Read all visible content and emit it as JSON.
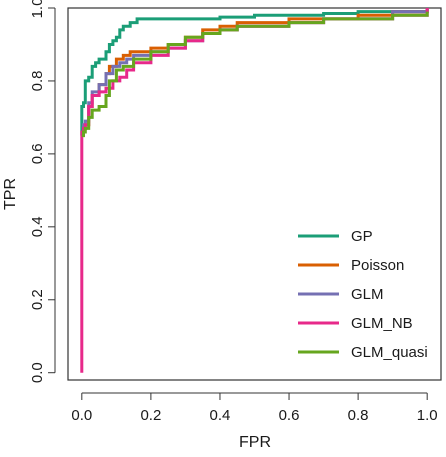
{
  "chart_data": {
    "type": "line",
    "title": "",
    "xlabel": "FPR",
    "ylabel": "TPR",
    "xlim": [
      -0.04,
      1.04
    ],
    "ylim": [
      -0.02,
      1.0
    ],
    "xticks": [
      0.0,
      0.2,
      0.4,
      0.6,
      0.8,
      1.0
    ],
    "xtick_labels": [
      "0.0",
      "0.2",
      "0.4",
      "0.6",
      "0.8",
      "1.0"
    ],
    "yticks": [
      0.0,
      0.2,
      0.4,
      0.6,
      0.8,
      1.0
    ],
    "ytick_labels": [
      "0.0",
      "0.2",
      "0.4",
      "0.6",
      "0.8",
      "1.0"
    ],
    "grid": false,
    "legend_position": "bottom-right",
    "series": [
      {
        "name": "GP",
        "color": "#1b9e77",
        "x": [
          0.0,
          0.0,
          0.005,
          0.01,
          0.02,
          0.03,
          0.04,
          0.05,
          0.07,
          0.08,
          0.09,
          0.1,
          0.11,
          0.12,
          0.14,
          0.16,
          0.2,
          0.3,
          0.4,
          0.5,
          0.6,
          0.7,
          0.8,
          0.9,
          1.0
        ],
        "y": [
          0.65,
          0.73,
          0.74,
          0.8,
          0.81,
          0.84,
          0.85,
          0.86,
          0.88,
          0.9,
          0.91,
          0.92,
          0.94,
          0.95,
          0.96,
          0.97,
          0.97,
          0.97,
          0.975,
          0.98,
          0.98,
          0.985,
          0.99,
          0.99,
          1.0
        ]
      },
      {
        "name": "Poisson",
        "color": "#d95f02",
        "x": [
          0.0,
          0.005,
          0.01,
          0.02,
          0.03,
          0.05,
          0.07,
          0.08,
          0.1,
          0.12,
          0.14,
          0.16,
          0.2,
          0.25,
          0.3,
          0.35,
          0.4,
          0.45,
          0.5,
          0.6,
          0.7,
          0.8,
          0.9,
          1.0
        ],
        "y": [
          0.66,
          0.67,
          0.68,
          0.73,
          0.76,
          0.79,
          0.82,
          0.84,
          0.86,
          0.87,
          0.88,
          0.88,
          0.89,
          0.9,
          0.92,
          0.94,
          0.95,
          0.96,
          0.96,
          0.97,
          0.97,
          0.98,
          0.99,
          1.0
        ]
      },
      {
        "name": "GLM",
        "color": "#7570b3",
        "x": [
          0.0,
          0.005,
          0.01,
          0.02,
          0.03,
          0.05,
          0.07,
          0.09,
          0.11,
          0.13,
          0.15,
          0.2,
          0.25,
          0.3,
          0.35,
          0.4,
          0.45,
          0.5,
          0.6,
          0.7,
          0.8,
          0.9,
          1.0
        ],
        "y": [
          0.67,
          0.68,
          0.69,
          0.74,
          0.77,
          0.79,
          0.82,
          0.84,
          0.85,
          0.86,
          0.87,
          0.88,
          0.89,
          0.91,
          0.93,
          0.94,
          0.95,
          0.95,
          0.96,
          0.97,
          0.97,
          0.99,
          1.0
        ]
      },
      {
        "name": "GLM_NB",
        "color": "#e7298a",
        "x": [
          0.0,
          0.0,
          0.0,
          0.005,
          0.01,
          0.02,
          0.03,
          0.05,
          0.07,
          0.09,
          0.11,
          0.13,
          0.15,
          0.2,
          0.25,
          0.3,
          0.35,
          0.4,
          0.45,
          0.5,
          0.6,
          0.7,
          0.8,
          0.9,
          1.0
        ],
        "y": [
          0.0,
          0.3,
          0.66,
          0.67,
          0.68,
          0.73,
          0.76,
          0.77,
          0.78,
          0.8,
          0.81,
          0.83,
          0.85,
          0.87,
          0.89,
          0.91,
          0.93,
          0.94,
          0.95,
          0.95,
          0.96,
          0.97,
          0.97,
          0.98,
          1.0
        ]
      },
      {
        "name": "GLM_quasi",
        "color": "#66a61e",
        "x": [
          0.0,
          0.005,
          0.01,
          0.02,
          0.03,
          0.05,
          0.07,
          0.08,
          0.1,
          0.12,
          0.15,
          0.2,
          0.25,
          0.3,
          0.35,
          0.4,
          0.45,
          0.5,
          0.6,
          0.7,
          0.8,
          0.9,
          1.0
        ],
        "y": [
          0.65,
          0.66,
          0.67,
          0.7,
          0.72,
          0.73,
          0.76,
          0.8,
          0.83,
          0.84,
          0.86,
          0.88,
          0.9,
          0.92,
          0.93,
          0.94,
          0.95,
          0.95,
          0.96,
          0.97,
          0.97,
          0.98,
          0.99
        ]
      }
    ]
  }
}
